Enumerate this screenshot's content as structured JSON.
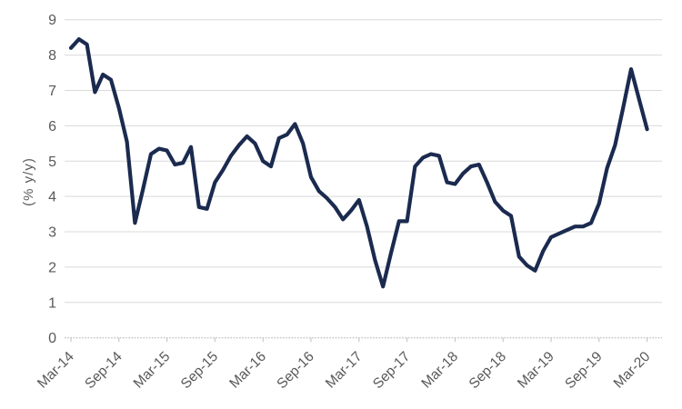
{
  "chart_data": {
    "type": "line",
    "title": "",
    "xlabel": "",
    "ylabel": "(% y/y)",
    "ylim": [
      0,
      9
    ],
    "grid": true,
    "legend": "none",
    "y_tick_labels": [
      "0",
      "1",
      "2",
      "3",
      "4",
      "5",
      "6",
      "7",
      "8",
      "9"
    ],
    "x_tick_labels": [
      "Mar-14",
      "Sep-14",
      "Mar-15",
      "Sep-15",
      "Mar-16",
      "Sep-16",
      "Mar-17",
      "Sep-17",
      "Mar-18",
      "Sep-18",
      "Mar-19",
      "Sep-19",
      "Mar-20"
    ],
    "x_tick_every": 6,
    "x_start_label": "Mar-14",
    "x_end_label": "Mar-20",
    "points_per_month": 1,
    "values": [
      8.2,
      8.45,
      8.3,
      6.95,
      7.45,
      7.3,
      6.5,
      5.55,
      3.25,
      4.2,
      5.2,
      5.35,
      5.3,
      4.9,
      4.95,
      5.4,
      3.7,
      3.65,
      4.4,
      4.75,
      5.15,
      5.45,
      5.7,
      5.5,
      5.0,
      4.85,
      5.65,
      5.75,
      6.05,
      5.5,
      4.55,
      4.15,
      3.95,
      3.7,
      3.35,
      3.6,
      3.9,
      3.15,
      2.2,
      1.45,
      2.4,
      3.3,
      3.3,
      4.85,
      5.1,
      5.2,
      5.15,
      4.4,
      4.35,
      4.65,
      4.85,
      4.9,
      4.4,
      3.85,
      3.6,
      3.45,
      2.3,
      2.05,
      1.9,
      2.45,
      2.85,
      2.95,
      3.05,
      3.15,
      3.15,
      3.25,
      3.8,
      4.8,
      5.45,
      6.5,
      7.6,
      6.75,
      5.9
    ],
    "colors": {
      "line": "#1b2a4f",
      "grid": "#d9d9d9",
      "axis": "#c3c3c3",
      "tick": "#bfbfbf",
      "label": "#595959",
      "background": "#ffffff"
    }
  }
}
